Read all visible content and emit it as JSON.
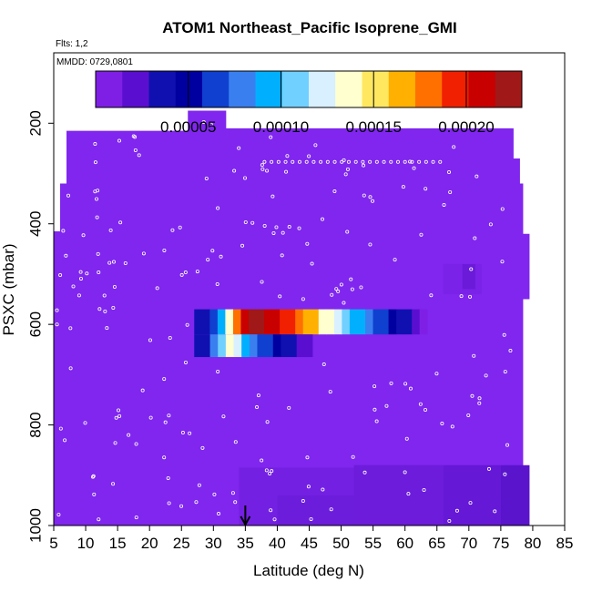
{
  "chart_data": {
    "type": "heatmap",
    "title": "ATOM1 Northeast_Pacific Isoprene_GMI",
    "flights_note": "Flts: 1,2",
    "date_note": "MMDD: 0729,0801",
    "xlabel": "Latitude (deg N)",
    "ylabel": "PSXC (mbar)",
    "xlim": [
      5,
      85
    ],
    "ylim": [
      1000,
      60
    ],
    "y_reversed": true,
    "x_ticks": [
      "5",
      "10",
      "15",
      "20",
      "25",
      "30",
      "35",
      "40",
      "45",
      "50",
      "55",
      "60",
      "65",
      "70",
      "75",
      "80",
      "85"
    ],
    "y_ticks": [
      "200",
      "400",
      "600",
      "800",
      "1000"
    ],
    "colorbar": {
      "range": [
        0,
        0.00023
      ],
      "tick_labels": [
        "0.00005",
        "0.00010",
        "0.00015",
        "0.00020"
      ],
      "tick_values": [
        5e-05,
        0.0001,
        0.00015,
        0.0002
      ],
      "colors": [
        "#7f1fe6",
        "#5a0fd0",
        "#1010b0",
        "#0000a0",
        "#1040d0",
        "#3a7ff0",
        "#00b0ff",
        "#70d0ff",
        "#d8f0ff",
        "#ffffd0",
        "#ffe860",
        "#ffb000",
        "#ff7000",
        "#f02000",
        "#c80000",
        "#a01818"
      ]
    },
    "background_color": "#8026ee",
    "arrow_latitude": 35,
    "hotspot_upper": {
      "lat_range": [
        27,
        63.5
      ],
      "pressure_range": [
        570,
        620
      ],
      "values": [
        3e-05,
        4e-05,
        6e-05,
        9e-05,
        0.00013,
        0.00018,
        0.00021,
        0.00022,
        0.00022,
        0.00021,
        0.00021,
        0.0002,
        0.00019,
        0.00018,
        0.00017,
        0.00016,
        0.00014,
        0.00013,
        0.00012,
        0.00011,
        0.0001,
        9e-05,
        8e-05,
        7e-05,
        6e-05,
        5e-05,
        4e-05,
        3e-05,
        2e-05,
        1e-05
      ]
    },
    "hotspot_lower": {
      "lat_range": [
        27,
        45.5
      ],
      "pressure_range": [
        620,
        665
      ],
      "values": [
        3e-05,
        4e-05,
        8e-05,
        0.00011,
        0.00013,
        0.00012,
        0.0001,
        8e-05,
        7e-05,
        6e-05,
        5e-05,
        4e-05,
        3e-05,
        2e-05,
        2e-05
      ]
    }
  }
}
